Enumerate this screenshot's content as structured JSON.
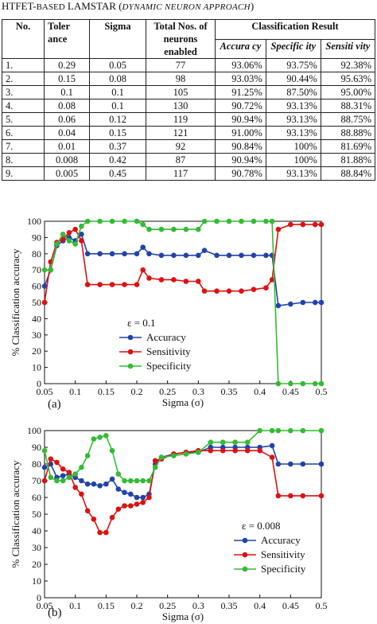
{
  "caption": {
    "prefix": "HTFET-",
    "small": "BASED",
    "main": " LAMSTAR (",
    "italic": "DYNAMIC NEURON APPROACH",
    "suffix": ")"
  },
  "table": {
    "headers": {
      "no": "No.",
      "tol": "Toler ance",
      "sigma": "Sigma",
      "neurons": "Total Nos. of neurons enabled",
      "result": "Classification Result",
      "acc": "Accura cy",
      "spec": "Specific ity",
      "sens": "Sensiti vity"
    },
    "rows": [
      [
        "1.",
        "0.29",
        "0.05",
        "77",
        "93.06%",
        "93.75%",
        "92.38%"
      ],
      [
        "2.",
        "0.15",
        "0.08",
        "98",
        "93.03%",
        "90.44%",
        "95.63%"
      ],
      [
        "3.",
        "0.1",
        "0.1",
        "105",
        "91.25%",
        "87.50%",
        "95.00%"
      ],
      [
        "4.",
        "0.08",
        "0.1",
        "130",
        "90.72%",
        "93.13%",
        "88.31%"
      ],
      [
        "5.",
        "0.06",
        "0.12",
        "119",
        "90.94%",
        "93.13%",
        "88.75%"
      ],
      [
        "6.",
        "0.04",
        "0.15",
        "121",
        "91.00%",
        "93.13%",
        "88.88%"
      ],
      [
        "7.",
        "0.01",
        "0.37",
        "92",
        "90.84%",
        "100%",
        "81.69%"
      ],
      [
        "8.",
        "0.008",
        "0.42",
        "87",
        "90.94%",
        "100%",
        "81.88%"
      ],
      [
        "9.",
        "0.005",
        "0.45",
        "117",
        "90.78%",
        "93.13%",
        "88.84%"
      ]
    ]
  },
  "colors": {
    "accuracy": "#2244aa",
    "sensitivity": "#dd1111",
    "specificity": "#33bb33"
  },
  "chart_data": [
    {
      "type": "line",
      "panel_label": "(a)",
      "annotation": "ε = 0.1",
      "xlabel": "Sigma (σ)",
      "ylabel": "% Classification accuracy",
      "xlim": [
        0.05,
        0.5
      ],
      "ylim": [
        0,
        100
      ],
      "grid": false,
      "legend": "lower-left",
      "xticks": [
        "0.05",
        "0.1",
        "0.15",
        "0.2",
        "0.25",
        "0.3",
        "0.35",
        "0.4",
        "0.45",
        "0.5"
      ],
      "yticks": [
        "0",
        "10",
        "20",
        "30",
        "40",
        "50",
        "60",
        "70",
        "80",
        "90",
        "100"
      ],
      "series": [
        {
          "name": "Accuracy",
          "color": "#2244aa",
          "x": [
            0.05,
            0.06,
            0.07,
            0.08,
            0.09,
            0.1,
            0.11,
            0.12,
            0.14,
            0.16,
            0.18,
            0.2,
            0.21,
            0.22,
            0.24,
            0.26,
            0.28,
            0.3,
            0.31,
            0.33,
            0.35,
            0.37,
            0.39,
            0.41,
            0.42,
            0.43,
            0.45,
            0.47,
            0.49,
            0.5
          ],
          "y": [
            60,
            70,
            85,
            88,
            90,
            88,
            92,
            80,
            80,
            80,
            80,
            80,
            84,
            80,
            79,
            79,
            79,
            79,
            82,
            79,
            79,
            79,
            79,
            79,
            79,
            48,
            49,
            50,
            50,
            50
          ]
        },
        {
          "name": "Sensitivity",
          "color": "#dd1111",
          "x": [
            0.05,
            0.06,
            0.07,
            0.08,
            0.09,
            0.1,
            0.11,
            0.12,
            0.14,
            0.16,
            0.18,
            0.2,
            0.21,
            0.22,
            0.24,
            0.26,
            0.28,
            0.3,
            0.31,
            0.33,
            0.35,
            0.37,
            0.39,
            0.41,
            0.42,
            0.43,
            0.45,
            0.47,
            0.49,
            0.5
          ],
          "y": [
            50,
            75,
            87,
            89,
            93,
            95,
            88,
            61,
            61,
            61,
            61,
            61,
            70,
            65,
            64,
            64,
            63,
            63,
            57,
            57,
            57,
            57,
            58,
            59,
            64,
            95,
            98,
            98,
            98,
            98
          ]
        },
        {
          "name": "Specificity",
          "color": "#33bb33",
          "x": [
            0.05,
            0.06,
            0.07,
            0.08,
            0.09,
            0.1,
            0.11,
            0.12,
            0.14,
            0.16,
            0.18,
            0.2,
            0.21,
            0.22,
            0.24,
            0.26,
            0.28,
            0.3,
            0.31,
            0.33,
            0.35,
            0.37,
            0.39,
            0.41,
            0.42,
            0.43,
            0.45,
            0.47,
            0.49,
            0.5
          ],
          "y": [
            70,
            70,
            86,
            92,
            88,
            86,
            97,
            100,
            100,
            100,
            100,
            100,
            98,
            95,
            95,
            95,
            95,
            95,
            100,
            100,
            100,
            100,
            100,
            100,
            100,
            0,
            0,
            0,
            0,
            0
          ]
        }
      ]
    },
    {
      "type": "line",
      "panel_label": "(b)",
      "annotation": "ε = 0.008",
      "xlabel": "Sigma (σ)",
      "ylabel": "% Classification accuracy",
      "xlim": [
        0.05,
        0.5
      ],
      "ylim": [
        0,
        100
      ],
      "grid": false,
      "legend": "lower-right",
      "xticks": [
        "0.05",
        "0.1",
        "0.15",
        "0.2",
        "0.25",
        "0.3",
        "0.35",
        "0.4",
        "0.45",
        "0.5"
      ],
      "yticks": [
        "0",
        "10",
        "20",
        "30",
        "40",
        "50",
        "60",
        "70",
        "80",
        "90",
        "100"
      ],
      "series": [
        {
          "name": "Accuracy",
          "color": "#2244aa",
          "x": [
            0.05,
            0.06,
            0.07,
            0.08,
            0.09,
            0.1,
            0.11,
            0.12,
            0.13,
            0.14,
            0.15,
            0.16,
            0.17,
            0.18,
            0.19,
            0.2,
            0.21,
            0.22,
            0.23,
            0.24,
            0.26,
            0.28,
            0.3,
            0.32,
            0.34,
            0.36,
            0.38,
            0.4,
            0.42,
            0.43,
            0.45,
            0.47,
            0.5
          ],
          "y": [
            78,
            80,
            72,
            73,
            74,
            72,
            70,
            68,
            68,
            67,
            68,
            71,
            65,
            63,
            62,
            60,
            60,
            62,
            80,
            84,
            86,
            87,
            87,
            90,
            90,
            90,
            90,
            90,
            91,
            80,
            80,
            80,
            80
          ]
        },
        {
          "name": "Sensitivity",
          "color": "#dd1111",
          "x": [
            0.05,
            0.06,
            0.07,
            0.08,
            0.09,
            0.1,
            0.11,
            0.12,
            0.13,
            0.14,
            0.15,
            0.16,
            0.17,
            0.18,
            0.19,
            0.2,
            0.21,
            0.22,
            0.23,
            0.24,
            0.26,
            0.28,
            0.3,
            0.32,
            0.34,
            0.36,
            0.38,
            0.4,
            0.42,
            0.43,
            0.45,
            0.47,
            0.5
          ],
          "y": [
            70,
            83,
            81,
            77,
            75,
            66,
            62,
            52,
            47,
            39,
            39,
            48,
            53,
            55,
            55,
            56,
            57,
            60,
            82,
            83,
            86,
            87,
            88,
            88,
            88,
            88,
            88,
            88,
            84,
            61,
            61,
            61,
            61
          ]
        },
        {
          "name": "Specificity",
          "color": "#33bb33",
          "x": [
            0.05,
            0.06,
            0.07,
            0.08,
            0.09,
            0.1,
            0.11,
            0.12,
            0.13,
            0.14,
            0.15,
            0.16,
            0.17,
            0.18,
            0.19,
            0.2,
            0.21,
            0.22,
            0.23,
            0.24,
            0.26,
            0.28,
            0.3,
            0.32,
            0.34,
            0.36,
            0.38,
            0.4,
            0.42,
            0.43,
            0.45,
            0.47,
            0.5
          ],
          "y": [
            88,
            72,
            70,
            70,
            72,
            74,
            78,
            85,
            95,
            96,
            97,
            88,
            74,
            70,
            70,
            70,
            70,
            70,
            78,
            84,
            85,
            86,
            87,
            93,
            93,
            93,
            93,
            100,
            100,
            100,
            100,
            100,
            100
          ]
        }
      ]
    }
  ]
}
